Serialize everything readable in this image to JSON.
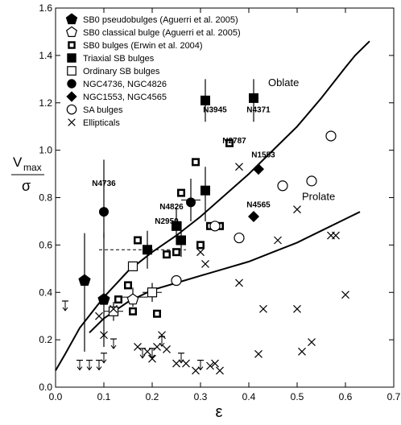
{
  "chart_data": {
    "type": "scatter",
    "xlabel": "ε",
    "ylabel_top": "V",
    "ylabel_sub": "max",
    "ylabel_bottom": "σ",
    "xlim": [
      0.0,
      0.7
    ],
    "ylim": [
      0.0,
      1.6
    ],
    "xticks": [
      "0.0",
      "0.1",
      "0.2",
      "0.3",
      "0.4",
      "0.5",
      "0.6",
      "0.7"
    ],
    "yticks": [
      "0.0",
      "0.2",
      "0.4",
      "0.6",
      "0.8",
      "1.0",
      "1.2",
      "1.4",
      "1.6"
    ],
    "grid": false,
    "legend_position": "top-left",
    "legend": [
      {
        "marker": "pentagon-filled",
        "label": "SB0 pseudobulges",
        "ref": "(Aguerri et al. 2005)"
      },
      {
        "marker": "pentagon-open",
        "label": "SB0 classical bulge",
        "ref": "(Aguerri et al. 2005)"
      },
      {
        "marker": "square-dotted",
        "label": "SB0 bulges",
        "ref": "(Erwin et al. 2004)"
      },
      {
        "marker": "square-filled",
        "label": "Triaxial SB bulges",
        "ref": ""
      },
      {
        "marker": "square-open",
        "label": "Ordinary SB bulges",
        "ref": ""
      },
      {
        "marker": "circle-filled",
        "label": "NGC4736, NGC4826",
        "ref": ""
      },
      {
        "marker": "diamond-filled",
        "label": "NGC1553, NGC4565",
        "ref": ""
      },
      {
        "marker": "circle-open",
        "label": "SA bulges",
        "ref": ""
      },
      {
        "marker": "cross",
        "label": "Ellipticals",
        "ref": ""
      }
    ],
    "curves": [
      {
        "name": "Oblate",
        "x": [
          0.0,
          0.02,
          0.05,
          0.1,
          0.15,
          0.2,
          0.25,
          0.3,
          0.35,
          0.4,
          0.45,
          0.5,
          0.55,
          0.6,
          0.62,
          0.65
        ],
        "y": [
          0.07,
          0.14,
          0.25,
          0.38,
          0.49,
          0.57,
          0.64,
          0.72,
          0.81,
          0.9,
          1.0,
          1.1,
          1.22,
          1.35,
          1.4,
          1.46
        ]
      },
      {
        "name": "Prolate",
        "x": [
          0.07,
          0.1,
          0.15,
          0.2,
          0.25,
          0.3,
          0.35,
          0.4,
          0.45,
          0.5,
          0.55,
          0.6,
          0.63
        ],
        "y": [
          0.23,
          0.29,
          0.36,
          0.41,
          0.44,
          0.47,
          0.5,
          0.53,
          0.57,
          0.61,
          0.66,
          0.71,
          0.74
        ]
      }
    ],
    "series": [
      {
        "marker": "pentagon-filled",
        "points": [
          [
            0.06,
            0.45
          ],
          [
            0.1,
            0.37
          ]
        ],
        "errors": [
          [
            0.06,
            0.15,
            0.65,
            null
          ],
          [
            0.1,
            0.17,
            0.65,
            null
          ]
        ]
      },
      {
        "marker": "pentagon-open",
        "points": [
          [
            0.16,
            0.37
          ]
        ],
        "errors": [
          [
            0.16,
            0.34,
            0.42,
            0.03
          ]
        ]
      },
      {
        "marker": "square-dotted",
        "points": [
          [
            0.17,
            0.62
          ],
          [
            0.23,
            0.56
          ],
          [
            0.25,
            0.57
          ],
          [
            0.26,
            0.82
          ],
          [
            0.29,
            0.95
          ],
          [
            0.3,
            0.6
          ],
          [
            0.32,
            0.68
          ],
          [
            0.34,
            0.68
          ],
          [
            0.36,
            1.03
          ],
          [
            0.13,
            0.37
          ],
          [
            0.15,
            0.43
          ],
          [
            0.16,
            0.32
          ],
          [
            0.21,
            0.31
          ]
        ],
        "errors": []
      },
      {
        "marker": "square-filled",
        "points": [
          [
            0.19,
            0.58
          ],
          [
            0.25,
            0.68
          ],
          [
            0.26,
            0.62
          ],
          [
            0.31,
            0.83
          ],
          [
            0.31,
            1.21
          ],
          [
            0.41,
            1.22
          ]
        ],
        "errors": [
          [
            0.19,
            0.5,
            0.66,
            null
          ],
          [
            0.25,
            0.6,
            0.76,
            null
          ],
          [
            0.26,
            0.55,
            0.7,
            null
          ],
          [
            0.31,
            0.7,
            0.93,
            null
          ],
          [
            0.31,
            1.12,
            1.3,
            null
          ],
          [
            0.41,
            1.12,
            1.3,
            null
          ]
        ]
      },
      {
        "marker": "square-open",
        "points": [
          [
            0.12,
            0.32
          ],
          [
            0.16,
            0.51
          ],
          [
            0.2,
            0.4
          ]
        ],
        "errors": [
          [
            0.12,
            0.28,
            0.36,
            0.02
          ],
          [
            0.2,
            0.36,
            0.44,
            0.02
          ]
        ]
      },
      {
        "marker": "circle-filled",
        "points": [
          [
            0.1,
            0.74
          ],
          [
            0.28,
            0.78
          ]
        ],
        "errors": [
          [
            0.1,
            0.63,
            0.96,
            null
          ],
          [
            0.28,
            0.7,
            0.88,
            0.02
          ]
        ]
      },
      {
        "marker": "diamond-filled",
        "points": [
          [
            0.41,
            0.72
          ],
          [
            0.42,
            0.92
          ]
        ],
        "errors": []
      },
      {
        "marker": "circle-open",
        "points": [
          [
            0.25,
            0.45
          ],
          [
            0.33,
            0.68
          ],
          [
            0.38,
            0.63
          ],
          [
            0.47,
            0.85
          ],
          [
            0.53,
            0.87
          ],
          [
            0.57,
            1.06
          ]
        ],
        "errors": []
      },
      {
        "marker": "cross",
        "points": [
          [
            0.09,
            0.3
          ],
          [
            0.1,
            0.22
          ],
          [
            0.12,
            0.33
          ],
          [
            0.17,
            0.17
          ],
          [
            0.19,
            0.15
          ],
          [
            0.2,
            0.12
          ],
          [
            0.21,
            0.17
          ],
          [
            0.22,
            0.22
          ],
          [
            0.23,
            0.16
          ],
          [
            0.25,
            0.1
          ],
          [
            0.27,
            0.1
          ],
          [
            0.29,
            0.07
          ],
          [
            0.3,
            0.57
          ],
          [
            0.31,
            0.52
          ],
          [
            0.32,
            0.09
          ],
          [
            0.33,
            0.1
          ],
          [
            0.34,
            0.07
          ],
          [
            0.38,
            0.93
          ],
          [
            0.38,
            0.44
          ],
          [
            0.42,
            0.14
          ],
          [
            0.43,
            0.33
          ],
          [
            0.46,
            0.62
          ],
          [
            0.5,
            0.75
          ],
          [
            0.5,
            0.33
          ],
          [
            0.51,
            0.15
          ],
          [
            0.53,
            0.19
          ],
          [
            0.58,
            0.64
          ],
          [
            0.6,
            0.39
          ],
          [
            0.57,
            0.64
          ]
        ],
        "errors": []
      },
      {
        "marker": "arrow-updown",
        "points": [
          [
            0.02,
            0.35
          ],
          [
            0.05,
            0.1
          ],
          [
            0.07,
            0.1
          ],
          [
            0.09,
            0.1
          ],
          [
            0.1,
            0.13
          ],
          [
            0.12,
            0.19
          ],
          [
            0.18,
            0.15
          ],
          [
            0.2,
            0.15
          ],
          [
            0.22,
            0.2
          ],
          [
            0.26,
            0.13
          ],
          [
            0.3,
            0.1
          ]
        ],
        "errors": []
      }
    ],
    "dashed_line": {
      "x": [
        0.09,
        0.27
      ],
      "y": 0.58
    },
    "annotations": [
      {
        "text": "N4736",
        "x": 0.1,
        "y": 0.85
      },
      {
        "text": "N4826",
        "x": 0.24,
        "y": 0.75
      },
      {
        "text": "N2950",
        "x": 0.23,
        "y": 0.69
      },
      {
        "text": "N3945",
        "x": 0.33,
        "y": 1.16
      },
      {
        "text": "N4371",
        "x": 0.42,
        "y": 1.16
      },
      {
        "text": "N2787",
        "x": 0.37,
        "y": 1.03
      },
      {
        "text": "N1553",
        "x": 0.43,
        "y": 0.97
      },
      {
        "text": "N4565",
        "x": 0.42,
        "y": 0.76
      }
    ],
    "curve_labels": [
      {
        "text": "Oblate",
        "x": 0.44,
        "y": 1.27
      },
      {
        "text": "Prolate",
        "x": 0.51,
        "y": 0.79
      }
    ]
  }
}
